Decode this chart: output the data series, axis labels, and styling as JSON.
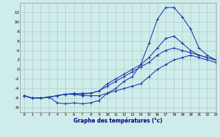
{
  "xlabel": "Graphe des températures (°c)",
  "background_color": "#ceecea",
  "grid_color": "#b0c8c8",
  "line_color": "#1a3aaa",
  "x_hours": [
    0,
    1,
    2,
    3,
    4,
    5,
    6,
    7,
    8,
    9,
    10,
    11,
    12,
    13,
    14,
    15,
    16,
    17,
    18,
    19,
    20,
    21,
    22,
    23
  ],
  "line1": [
    -5.5,
    -6,
    -6,
    -5.8,
    -7,
    -7.2,
    -7,
    -7.2,
    -7,
    -6.5,
    -5,
    -4,
    -2.5,
    -1.5,
    1,
    5.5,
    10.5,
    13,
    13,
    11,
    8.5,
    4.5,
    3,
    2
  ],
  "line2": [
    -5.5,
    -6,
    -6,
    -5.8,
    -5.5,
    -5.2,
    -5.2,
    -5.5,
    -5.5,
    -5.5,
    -5,
    -4.5,
    -4,
    -3.5,
    -3,
    -1.5,
    0,
    1,
    2,
    2.5,
    3,
    2.5,
    2,
    1.5
  ],
  "line3": [
    -5.5,
    -6,
    -6,
    -5.8,
    -5.5,
    -5.2,
    -5.2,
    -5,
    -5,
    -4.5,
    -3.5,
    -2.5,
    -1.5,
    -0.5,
    0.5,
    1.5,
    3,
    4,
    4.5,
    4,
    3.5,
    3,
    2.5,
    2
  ],
  "line4": [
    -5.5,
    -6,
    -6,
    -5.8,
    -5.5,
    -5.2,
    -5,
    -5.2,
    -5,
    -4.5,
    -3,
    -2,
    -1,
    0,
    1,
    2.5,
    4.5,
    6.5,
    7,
    5.5,
    4,
    3,
    2.5,
    2
  ],
  "ylim": [
    -9,
    14
  ],
  "xlim": [
    -0.5,
    23
  ],
  "yticks": [
    -8,
    -6,
    -4,
    -2,
    0,
    2,
    4,
    6,
    8,
    10,
    12
  ],
  "xticks": [
    0,
    1,
    2,
    3,
    4,
    5,
    6,
    7,
    8,
    9,
    10,
    11,
    12,
    13,
    14,
    15,
    16,
    17,
    18,
    19,
    20,
    21,
    22,
    23
  ]
}
